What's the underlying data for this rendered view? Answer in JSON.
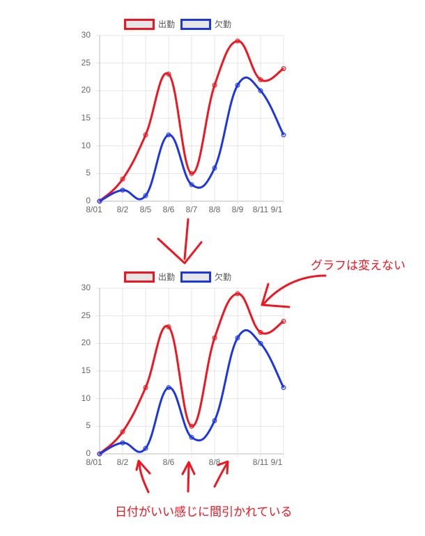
{
  "chart_data": [
    {
      "type": "line",
      "title": "",
      "legend_position": "top",
      "grid": true,
      "categories": [
        "8/01",
        "8/2",
        "8/5",
        "8/6",
        "8/7",
        "8/8",
        "8/9",
        "8/11",
        "9/1"
      ],
      "visible_x_ticks": [
        "8/01",
        "8/2",
        "8/5",
        "8/6",
        "8/7",
        "8/8",
        "8/9",
        "8/11",
        "9/1"
      ],
      "series": [
        {
          "name": "出勤",
          "color": "#f0151f",
          "values": [
            0,
            4,
            12,
            23,
            5,
            21,
            29,
            22,
            24
          ]
        },
        {
          "name": "欠勤",
          "color": "#1c35e6",
          "values": [
            0,
            2,
            1,
            12,
            3,
            6,
            21,
            20,
            12
          ]
        }
      ],
      "y_ticks": [
        "30",
        "25",
        "20",
        "15",
        "10",
        "5",
        "0"
      ],
      "ylim": [
        0,
        30
      ],
      "xlabel": "",
      "ylabel": ""
    },
    {
      "type": "line",
      "title": "",
      "legend_position": "top",
      "grid": true,
      "categories": [
        "8/01",
        "8/2",
        "8/5",
        "8/6",
        "8/7",
        "8/8",
        "8/9",
        "8/11",
        "9/1"
      ],
      "visible_x_ticks": [
        "8/01",
        "8/2",
        "",
        "8/6",
        "",
        "8/8",
        "",
        "8/11",
        "9/1"
      ],
      "series": [
        {
          "name": "出勤",
          "color": "#f0151f",
          "values": [
            0,
            4,
            12,
            23,
            5,
            21,
            29,
            22,
            24
          ]
        },
        {
          "name": "欠勤",
          "color": "#1c35e6",
          "values": [
            0,
            2,
            1,
            12,
            3,
            6,
            21,
            20,
            12
          ]
        }
      ],
      "y_ticks": [
        "30",
        "25",
        "20",
        "15",
        "10",
        "5",
        "0"
      ],
      "ylim": [
        0,
        30
      ],
      "xlabel": "",
      "ylabel": ""
    }
  ],
  "annotations": {
    "graph_unchanged": "グラフは変えない",
    "dates_thinned": "日付がいい感じに間引かれている"
  },
  "colors": {
    "attendance": "#f0151f",
    "absence": "#1c35e6",
    "annotation": "#f0151f"
  }
}
